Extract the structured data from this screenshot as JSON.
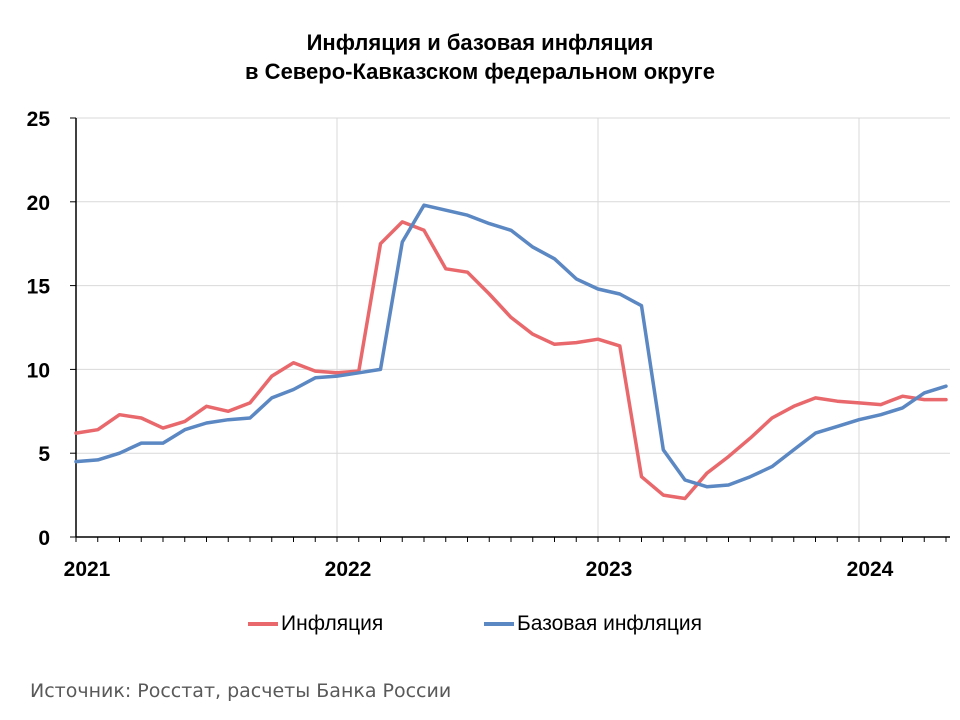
{
  "title_line1": "Инфляция и базовая инфляция",
  "title_line2": "в Северо-Кавказском федеральном округе",
  "source": "Источник: Росстат, расчеты Банка России",
  "colors": {
    "inflation": "#e8686c",
    "core": "#5b87c2",
    "grid": "#d9d9d9",
    "axis": "#000000"
  },
  "chart_data": {
    "type": "line",
    "title": "Инфляция и базовая инфляция в Северо-Кавказском федеральном округе",
    "xlabel": "",
    "ylabel": "",
    "x": [
      "2021-01",
      "2021-02",
      "2021-03",
      "2021-04",
      "2021-05",
      "2021-06",
      "2021-07",
      "2021-08",
      "2021-09",
      "2021-10",
      "2021-11",
      "2021-12",
      "2022-01",
      "2022-02",
      "2022-03",
      "2022-04",
      "2022-05",
      "2022-06",
      "2022-07",
      "2022-08",
      "2022-09",
      "2022-10",
      "2022-11",
      "2022-12",
      "2023-01",
      "2023-02",
      "2023-03",
      "2023-04",
      "2023-05",
      "2023-06",
      "2023-07",
      "2023-08",
      "2023-09",
      "2023-10",
      "2023-11",
      "2023-12",
      "2024-01",
      "2024-02",
      "2024-03",
      "2024-04",
      "2024-05"
    ],
    "x_ticks": [
      "2021",
      "2022",
      "2023",
      "2024"
    ],
    "y_ticks": [
      "0",
      "5",
      "10",
      "15",
      "20",
      "25"
    ],
    "ylim": [
      0,
      25
    ],
    "grid": "vertical at years, horizontal at 5-unit steps",
    "legend_position": "bottom",
    "series": [
      {
        "name": "Инфляция",
        "color": "#e8686c",
        "values": [
          6.2,
          6.4,
          7.3,
          7.1,
          6.5,
          6.9,
          7.8,
          7.5,
          8.0,
          9.6,
          10.4,
          9.9,
          9.8,
          9.9,
          17.5,
          18.8,
          18.3,
          16.0,
          15.8,
          14.5,
          13.1,
          12.1,
          11.5,
          11.6,
          11.8,
          11.4,
          3.6,
          2.5,
          2.3,
          3.8,
          4.8,
          5.9,
          7.1,
          7.8,
          8.3,
          8.1,
          8.0,
          7.9,
          8.4,
          8.2,
          8.2
        ]
      },
      {
        "name": "Базовая инфляция",
        "color": "#5b87c2",
        "values": [
          4.5,
          4.6,
          5.0,
          5.6,
          5.6,
          6.4,
          6.8,
          7.0,
          7.1,
          8.3,
          8.8,
          9.5,
          9.6,
          9.8,
          10.0,
          17.6,
          19.8,
          19.5,
          19.2,
          18.7,
          18.3,
          17.3,
          16.6,
          15.4,
          14.8,
          14.5,
          13.8,
          5.2,
          3.4,
          3.0,
          3.1,
          3.6,
          4.2,
          5.2,
          6.2,
          6.6,
          7.0,
          7.3,
          7.7,
          8.6,
          9.0
        ]
      }
    ]
  }
}
